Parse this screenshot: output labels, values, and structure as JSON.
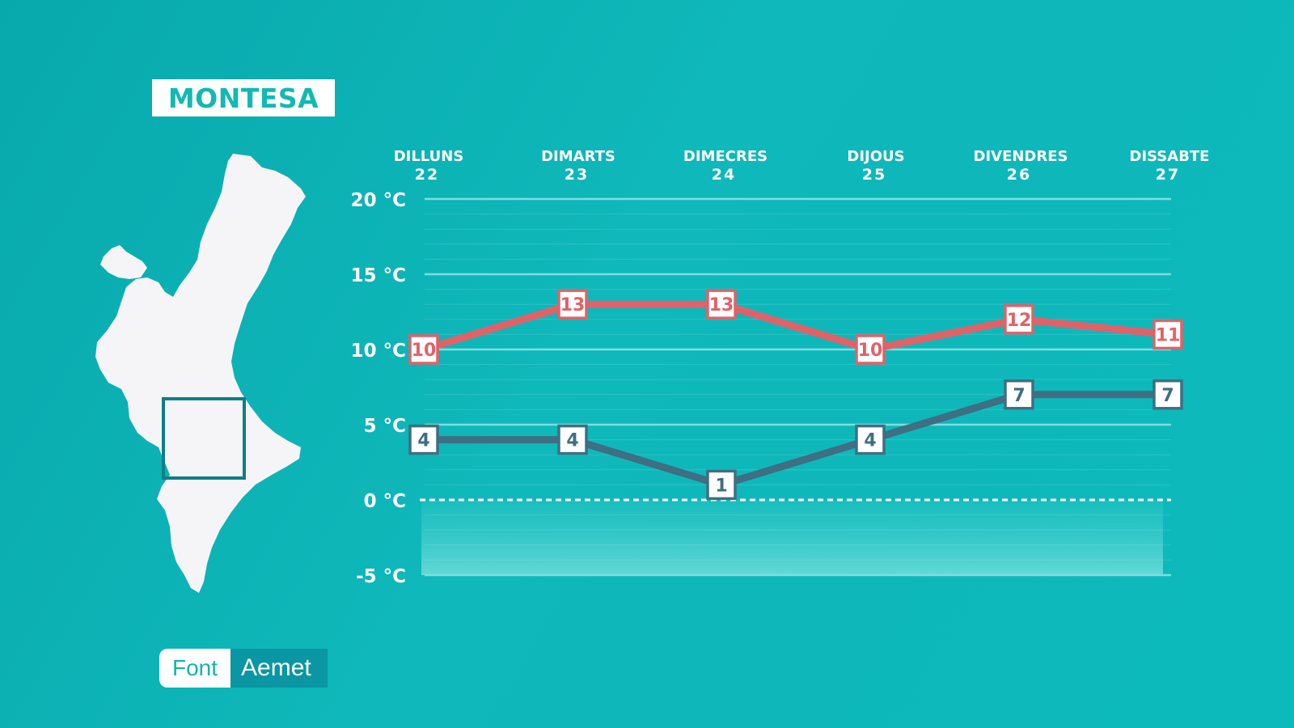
{
  "location": "MONTESA",
  "source": {
    "label": "Font",
    "value": "Aemet"
  },
  "colors": {
    "background": "#0cb3b5",
    "max_line": "#e06268",
    "min_line": "#3e6f82",
    "grid": "#7fdedd"
  },
  "chart_data": {
    "type": "line",
    "categories": [
      {
        "day": "DILLUNS",
        "date": "22"
      },
      {
        "day": "DIMARTS",
        "date": "23"
      },
      {
        "day": "DIMECRES",
        "date": "24"
      },
      {
        "day": "DIJOUS",
        "date": "25"
      },
      {
        "day": "DIVENDRES",
        "date": "26"
      },
      {
        "day": "DISSABTE",
        "date": "27"
      }
    ],
    "series": [
      {
        "values": [
          10,
          13,
          13,
          10,
          12,
          11
        ],
        "color": "#e06268"
      },
      {
        "values": [
          4,
          4,
          1,
          4,
          7,
          7
        ],
        "color": "#3e6f82"
      }
    ],
    "yticks": [
      {
        "value": 20,
        "label": "20 °C"
      },
      {
        "value": 15,
        "label": "15 °C"
      },
      {
        "value": 10,
        "label": "10 °C"
      },
      {
        "value": 5,
        "label": "5 °C"
      },
      {
        "value": 0,
        "label": "0 °C"
      },
      {
        "value": -5,
        "label": "-5 °C"
      }
    ],
    "ylim": [
      -5,
      20
    ],
    "grid": true,
    "zero_line": "dashed"
  }
}
